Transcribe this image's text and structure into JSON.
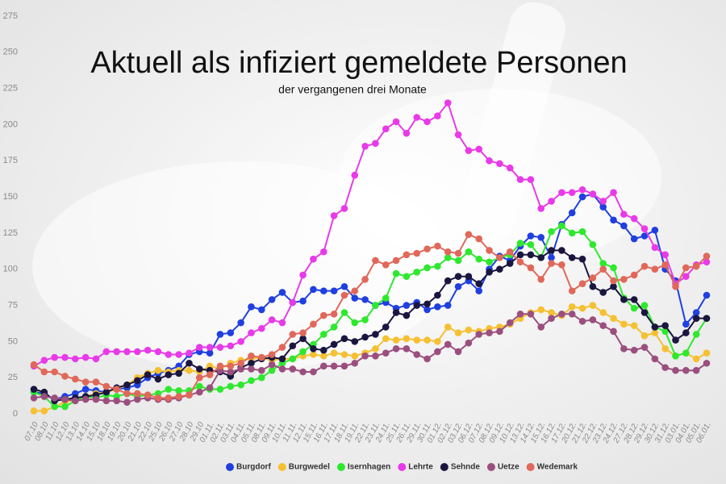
{
  "chart_data": {
    "type": "line",
    "title": "Aktuell als infiziert gemeldete Personen",
    "subtitle": "der vergangenen drei Monate",
    "categories": [
      "07.10",
      "08.10",
      "11.10",
      "12.10",
      "13.10",
      "14.10",
      "15.10",
      "18.10",
      "19.10",
      "20.10",
      "21.10",
      "22.10",
      "25.10",
      "26.10",
      "27.10",
      "28.10",
      "29.10",
      "01.11.",
      "02.11.",
      "03.11.",
      "04.11.",
      "05.11.",
      "08.11.",
      "09.11.",
      "10.11.",
      "11.11.",
      "12.11.",
      "15.11.",
      "16.11.",
      "17.11.",
      "18.11.",
      "19.11.",
      "22.11.",
      "23.11.",
      "24.11.",
      "25.11.",
      "26.11.",
      "29.11.",
      "30.11.",
      "01.12.",
      "02.12.",
      "03.12.",
      "06.12.",
      "07.12.",
      "08.12.",
      "09.12.",
      "10.12.",
      "13.12.",
      "14.12.",
      "15.12.",
      "16.12.",
      "17.12.",
      "20.12.",
      "21.12.",
      "22.12.",
      "23.12.",
      "24.12.",
      "27.12.",
      "28.12.",
      "29.12.",
      "30.12.",
      "31.12.",
      "03.01.",
      "04.01.",
      "05.01.",
      "06.01."
    ],
    "series": [
      {
        "name": "Burgdorf",
        "color": "#1f3fe0",
        "values": [
          15,
          14,
          10,
          12,
          14,
          17,
          16,
          15,
          17,
          18,
          20,
          25,
          28,
          30,
          33,
          41,
          43,
          42,
          55,
          56,
          63,
          74,
          72,
          79,
          84,
          77,
          78,
          86,
          85,
          85,
          88,
          80,
          79,
          75,
          77,
          73,
          75,
          77,
          72,
          74,
          75,
          88,
          92,
          85,
          100,
          109,
          106,
          116,
          123,
          122,
          108,
          131,
          139,
          150,
          152,
          143,
          134,
          130,
          121,
          123,
          127,
          100,
          92,
          62,
          70,
          82
        ]
      },
      {
        "name": "Burgwedel",
        "color": "#f5c031",
        "values": [
          2,
          2,
          5,
          8,
          10,
          12,
          14,
          15,
          17,
          20,
          25,
          28,
          30,
          29,
          30,
          30,
          29,
          33,
          31,
          35,
          37,
          38,
          39,
          37,
          38,
          38,
          40,
          41,
          40,
          42,
          41,
          40,
          42,
          45,
          52,
          51,
          52,
          51,
          51,
          50,
          60,
          56,
          58,
          57,
          59,
          60,
          62,
          66,
          70,
          72,
          70,
          68,
          74,
          73,
          75,
          70,
          66,
          62,
          61,
          54,
          56,
          45,
          40,
          42,
          38,
          42
        ]
      },
      {
        "name": "Isernhagen",
        "color": "#2ee82e",
        "values": [
          15,
          12,
          5,
          5,
          9,
          12,
          11,
          13,
          12,
          14,
          12,
          13,
          14,
          17,
          16,
          16,
          19,
          17,
          17,
          19,
          20,
          23,
          25,
          30,
          35,
          38,
          43,
          48,
          55,
          60,
          70,
          63,
          65,
          75,
          80,
          97,
          95,
          98,
          101,
          102,
          108,
          106,
          112,
          107,
          105,
          108,
          110,
          118,
          117,
          108,
          126,
          130,
          125,
          126,
          117,
          104,
          101,
          80,
          73,
          75,
          60,
          57,
          40,
          42,
          55,
          66
        ]
      },
      {
        "name": "Lehrte",
        "color": "#e83ae8",
        "values": [
          33,
          37,
          39,
          39,
          38,
          39,
          38,
          43,
          43,
          43,
          43,
          44,
          43,
          41,
          41,
          42,
          46,
          46,
          46,
          47,
          50,
          56,
          59,
          65,
          63,
          77,
          96,
          107,
          112,
          137,
          142,
          165,
          185,
          187,
          197,
          202,
          194,
          205,
          202,
          206,
          215,
          193,
          182,
          183,
          175,
          173,
          170,
          162,
          162,
          142,
          147,
          153,
          153,
          155,
          152,
          147,
          153,
          138,
          135,
          128,
          115,
          110,
          90,
          95,
          103,
          105
        ]
      },
      {
        "name": "Sehnde",
        "color": "#1a1640",
        "values": [
          17,
          15,
          9,
          10,
          11,
          12,
          13,
          15,
          18,
          20,
          23,
          27,
          24,
          27,
          28,
          35,
          31,
          30,
          29,
          26,
          32,
          35,
          38,
          39,
          38,
          47,
          52,
          45,
          44,
          48,
          52,
          50,
          53,
          55,
          60,
          70,
          68,
          75,
          76,
          82,
          92,
          95,
          95,
          90,
          98,
          100,
          104,
          110,
          110,
          108,
          113,
          113,
          108,
          107,
          88,
          84,
          88,
          79,
          79,
          70,
          60,
          61,
          51,
          56,
          66,
          66
        ]
      },
      {
        "name": "Uetze",
        "color": "#9b4f7e",
        "values": [
          11,
          12,
          11,
          10,
          9,
          10,
          10,
          9,
          9,
          8,
          10,
          11,
          10,
          10,
          11,
          13,
          15,
          18,
          30,
          29,
          31,
          31,
          30,
          34,
          31,
          31,
          29,
          29,
          33,
          33,
          33,
          35,
          40,
          40,
          42,
          45,
          45,
          41,
          38,
          43,
          48,
          43,
          49,
          55,
          56,
          57,
          63,
          69,
          69,
          60,
          66,
          69,
          69,
          64,
          65,
          61,
          57,
          45,
          44,
          46,
          38,
          32,
          30,
          30,
          30,
          35
        ]
      },
      {
        "name": "Wedemark",
        "color": "#e0685a",
        "values": [
          34,
          29,
          29,
          26,
          24,
          22,
          22,
          19,
          17,
          14,
          14,
          13,
          11,
          11,
          12,
          13,
          25,
          27,
          33,
          33,
          35,
          40,
          39,
          41,
          46,
          55,
          56,
          62,
          68,
          69,
          82,
          85,
          93,
          106,
          103,
          106,
          110,
          111,
          114,
          116,
          112,
          111,
          124,
          121,
          113,
          108,
          112,
          105,
          101,
          93,
          104,
          103,
          85,
          90,
          94,
          100,
          92,
          93,
          96,
          102,
          100,
          103,
          88,
          101,
          102,
          109
        ]
      }
    ],
    "ylim": [
      0,
      275
    ],
    "yticks": [
      0,
      25,
      50,
      75,
      100,
      125,
      150,
      175,
      200,
      225,
      250,
      275
    ],
    "grid": false,
    "legend": "bottom"
  }
}
